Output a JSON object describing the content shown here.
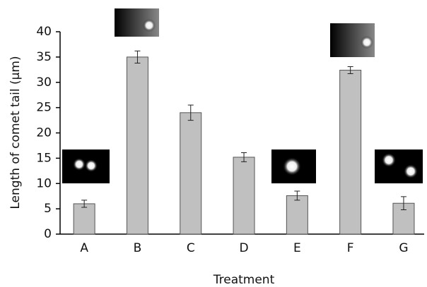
{
  "chart_data": {
    "type": "bar",
    "y_label": "Length of comet tail (μm)",
    "x_label": "Treatment",
    "categories": [
      "A",
      "B",
      "C",
      "D",
      "E",
      "F",
      "G"
    ],
    "values": [
      6,
      35,
      24,
      15.2,
      7.6,
      32.4,
      6.1
    ],
    "errors": [
      0.7,
      1.2,
      1.5,
      0.9,
      0.9,
      0.7,
      1.3
    ],
    "color": "#c0c0c0",
    "ylim": [
      0,
      40
    ],
    "yticks": [
      0,
      5,
      10,
      15,
      20,
      25,
      30,
      35,
      40
    ]
  }
}
